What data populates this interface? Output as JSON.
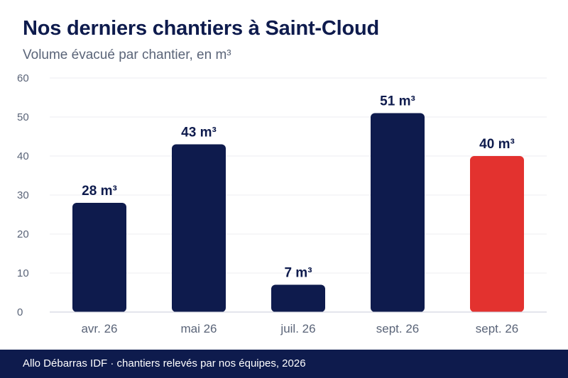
{
  "header": {
    "title": "Nos derniers chantiers à Saint-Cloud",
    "subtitle": "Volume évacué par chantier, en m³"
  },
  "footer": {
    "text": "Allo Débarras IDF · chantiers relevés par nos équipes, 2026"
  },
  "colors": {
    "bar": "#0e1b4d",
    "highlight": "#e3322f",
    "grid": "#ececf0",
    "axis": "#c9cbd8"
  },
  "chart_data": {
    "type": "bar",
    "title": "Nos derniers chantiers à Saint-Cloud",
    "subtitle": "Volume évacué par chantier, en m³",
    "categories": [
      "avr. 26",
      "mai 26",
      "juil. 26",
      "sept. 26",
      "sept. 26"
    ],
    "values": [
      28,
      43,
      7,
      51,
      40
    ],
    "data_labels": [
      "28 m³",
      "43 m³",
      "7 m³",
      "51 m³",
      "40 m³"
    ],
    "highlight_index": 4,
    "ylim": [
      0,
      60
    ],
    "yticks": [
      "0",
      "10",
      "20",
      "30",
      "40",
      "50",
      "60"
    ],
    "grid": true,
    "legend": "none"
  }
}
